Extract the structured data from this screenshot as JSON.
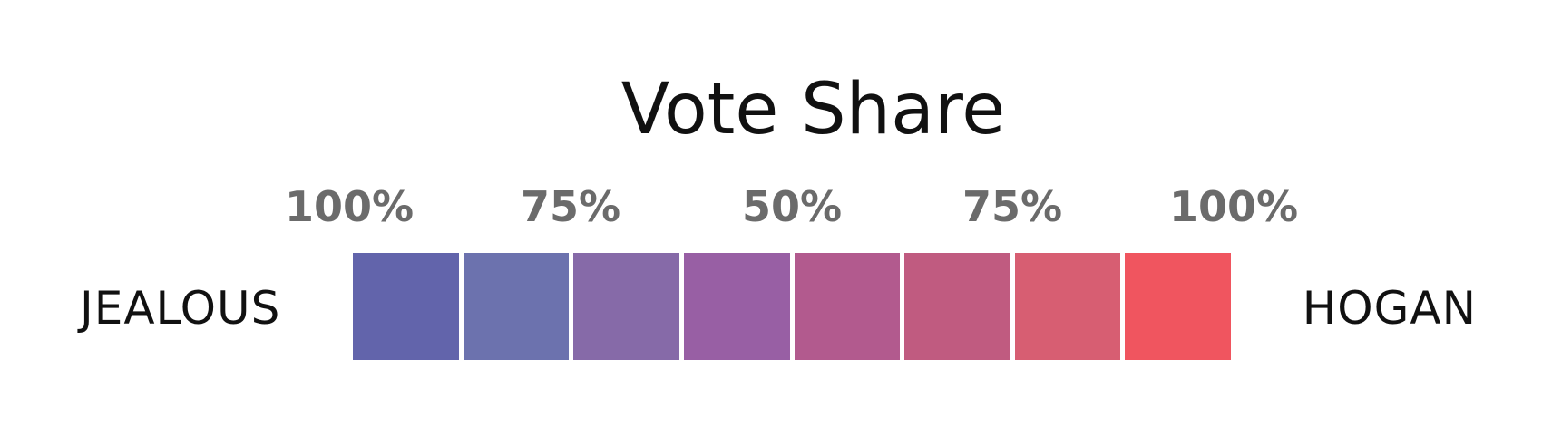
{
  "chart_data": {
    "type": "heatmap",
    "title": "Vote Share",
    "tick_labels": [
      "100%",
      "75%",
      "50%",
      "75%",
      "100%"
    ],
    "left_label": "JEALOUS",
    "right_label": "HOGAN",
    "bins": [
      {
        "color": "#6264ab"
      },
      {
        "color": "#6c72ae"
      },
      {
        "color": "#866aa8"
      },
      {
        "color": "#985fa4"
      },
      {
        "color": "#b25a8e"
      },
      {
        "color": "#c05b80"
      },
      {
        "color": "#d75e72"
      },
      {
        "color": "#f0555f"
      }
    ]
  }
}
